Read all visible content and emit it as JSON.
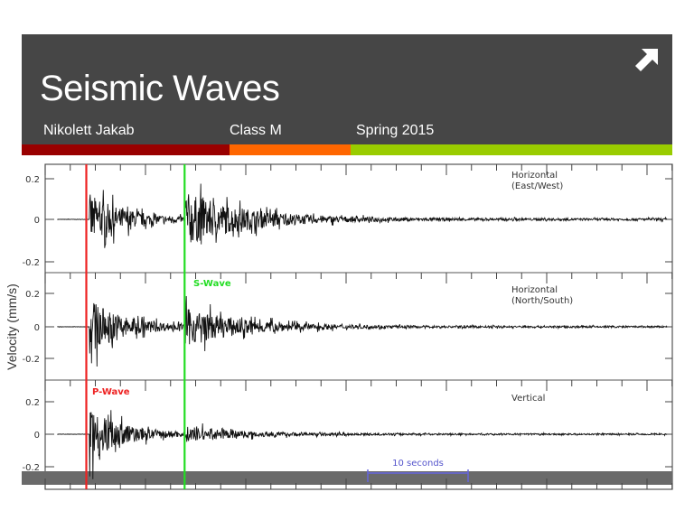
{
  "slide": {
    "title": "Seismic Waves",
    "author": "Nikolett Jakab",
    "class": "Class M",
    "term": "Spring 2015",
    "corner_icon": "arrow-up-right-icon",
    "accent_colors": [
      "#990000",
      "#ff6600",
      "#99cc00"
    ],
    "header_color": "#464646"
  },
  "chart_data": {
    "type": "line",
    "ylabel": "Velocity (mm/s)",
    "ylim": [
      -0.3,
      0.3
    ],
    "yticks": [
      "0.2",
      "0",
      "-0.2"
    ],
    "scale_bar_label": "10 seconds",
    "scale_bar_seconds": 10,
    "markers": [
      {
        "label": "P-Wave",
        "time_s": 4.1,
        "color": "#ee2222"
      },
      {
        "label": "S-Wave",
        "time_s": 13.9,
        "color": "#22dd22"
      }
    ],
    "series": [
      {
        "name": "Horizontal\n(East/West)",
        "name_lines": [
          "Horizontal",
          "(East/West)"
        ],
        "peak_after_p": 0.22,
        "peak_after_s": 0.24,
        "tail_amplitude": 0.01
      },
      {
        "name": "Horizontal\n(North/South)",
        "name_lines": [
          "Horizontal",
          "(North/South)"
        ],
        "peak_after_p": 0.3,
        "peak_after_s": 0.2,
        "tail_amplitude": 0.01
      },
      {
        "name": "Vertical",
        "name_lines": [
          "Vertical"
        ],
        "peak_after_p": 0.3,
        "peak_after_s": 0.08,
        "tail_amplitude": 0.008
      }
    ],
    "duration_s": 62
  }
}
